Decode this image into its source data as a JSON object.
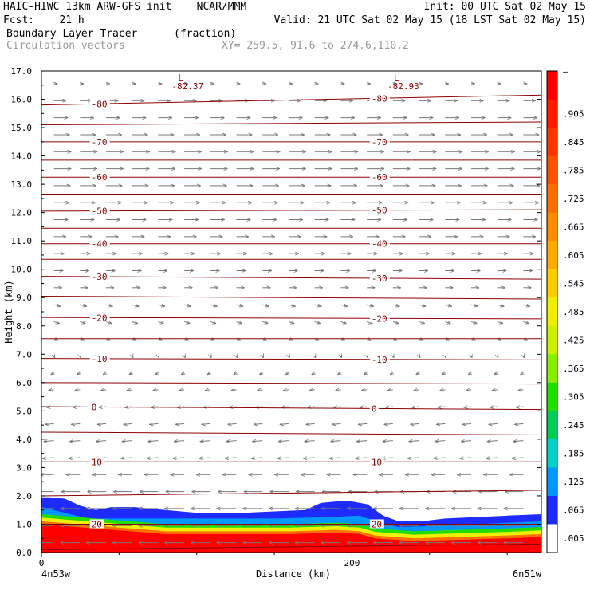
{
  "header": {
    "line1_left": "HAIC-HIWC 13km ARW-GFS init    NCAR/MMM",
    "line1_right": "Init: 00 UTC Sat 02 May 15",
    "line2_left": "Fcst:    21 h",
    "line2_right": "Valid: 21 UTC Sat 02 May 15 (18 LST Sat 02 May 15)",
    "line3_field": "Boundary Layer Tracer",
    "line3_units": "(fraction)",
    "line4_field": "Circulation vectors",
    "line4_xy": "XY= 259.5, 91.6 to 274.6,110.2"
  },
  "axes": {
    "ylabel": "Height (km)",
    "xlabel": "Distance (km)",
    "x_left_label": "4n53w",
    "x_right_label": "6n51w"
  },
  "low_markers": [
    {
      "symbol": "L",
      "value": "-82.37",
      "x_km": 88
    },
    {
      "symbol": "L",
      "value": "-82.93",
      "x_km": 227
    }
  ],
  "colorbar": {
    "top_label": "–",
    "labels": [
      ".905",
      ".845",
      ".785",
      ".725",
      ".665",
      ".605",
      ".545",
      ".485",
      ".425",
      ".365",
      ".305",
      ".245",
      ".185",
      ".125",
      ".065",
      ".005"
    ],
    "colors": [
      "#ff0000",
      "#ff1a00",
      "#ff3500",
      "#ff5200",
      "#ff6e00",
      "#ff8c00",
      "#ffaa00",
      "#ffcc00",
      "#eeee00",
      "#c8f000",
      "#88ee00",
      "#22dd00",
      "#00cc55",
      "#00d2c8",
      "#0096ff",
      "#1e2bff",
      "#ffffff"
    ]
  },
  "chart_data": {
    "type": "heatmap",
    "description_fields": "Vertical cross-section: boundary layer tracer (shaded, fraction), temperature contours (°C), circulation vectors",
    "x": {
      "label": "Distance (km)",
      "range": [
        0,
        322
      ],
      "ticks": [
        0,
        200
      ]
    },
    "y": {
      "label": "Height (km)",
      "range": [
        0,
        17
      ],
      "ticks": [
        0.0,
        1.0,
        2.0,
        3.0,
        4.0,
        5.0,
        6.0,
        7.0,
        8.0,
        9.0,
        10.0,
        11.0,
        12.0,
        13.0,
        14.0,
        15.0,
        16.0,
        17.0
      ]
    },
    "tick_labels_y": [
      "0.0",
      "1.0",
      "2.0",
      "3.0",
      "4.0",
      "5.0",
      "6.0",
      "7.0",
      "8.0",
      "9.0",
      "10.0",
      "11.0",
      "12.0",
      "13.0",
      "14.0",
      "15.0",
      "16.0",
      "17.0"
    ],
    "tick_labels_x": [
      "0",
      "200"
    ],
    "tracer_top_km": [
      [
        0,
        1.95
      ],
      [
        5,
        1.95
      ],
      [
        15,
        1.9
      ],
      [
        25,
        1.65
      ],
      [
        35,
        1.5
      ],
      [
        45,
        1.6
      ],
      [
        60,
        1.6
      ],
      [
        80,
        1.5
      ],
      [
        100,
        1.4
      ],
      [
        130,
        1.4
      ],
      [
        150,
        1.45
      ],
      [
        170,
        1.5
      ],
      [
        180,
        1.75
      ],
      [
        190,
        1.8
      ],
      [
        200,
        1.8
      ],
      [
        210,
        1.7
      ],
      [
        215,
        1.5
      ],
      [
        220,
        1.3
      ],
      [
        230,
        1.1
      ],
      [
        245,
        1.1
      ],
      [
        260,
        1.2
      ],
      [
        280,
        1.25
      ],
      [
        300,
        1.3
      ],
      [
        322,
        1.35
      ]
    ],
    "blue_layer_bottom_km": [
      [
        0,
        1.6
      ],
      [
        30,
        1.2
      ],
      [
        80,
        1.2
      ],
      [
        150,
        1.2
      ],
      [
        185,
        1.25
      ],
      [
        205,
        1.3
      ],
      [
        215,
        1.1
      ],
      [
        230,
        0.9
      ],
      [
        260,
        0.95
      ],
      [
        300,
        1.05
      ],
      [
        322,
        1.1
      ]
    ],
    "green_layer_bottom_km": [
      [
        0,
        1.35
      ],
      [
        80,
        1.0
      ],
      [
        160,
        1.0
      ],
      [
        190,
        1.05
      ],
      [
        205,
        1.0
      ],
      [
        215,
        0.85
      ],
      [
        240,
        0.75
      ],
      [
        300,
        0.85
      ],
      [
        322,
        0.9
      ]
    ],
    "temperature_contours": [
      {
        "label": "-80",
        "y0_km": 15.8,
        "y1_km": 16.15
      },
      {
        "label": "",
        "y0_km": 15.1,
        "y1_km": 15.2
      },
      {
        "label": "-70",
        "y0_km": 14.5,
        "y1_km": 14.5
      },
      {
        "label": "",
        "y0_km": 13.85,
        "y1_km": 13.85
      },
      {
        "label": "-60",
        "y0_km": 13.25,
        "y1_km": 13.25
      },
      {
        "label": "",
        "y0_km": 12.65,
        "y1_km": 12.65
      },
      {
        "label": "-50",
        "y0_km": 12.05,
        "y1_km": 12.1
      },
      {
        "label": "",
        "y0_km": 11.45,
        "y1_km": 11.45
      },
      {
        "label": "-40",
        "y0_km": 10.9,
        "y1_km": 10.9
      },
      {
        "label": "",
        "y0_km": 10.35,
        "y1_km": 10.35
      },
      {
        "label": "-30",
        "y0_km": 9.75,
        "y1_km": 9.65
      },
      {
        "label": "",
        "y0_km": 9.05,
        "y1_km": 8.95
      },
      {
        "label": "-20",
        "y0_km": 8.3,
        "y1_km": 8.25
      },
      {
        "label": "",
        "y0_km": 7.55,
        "y1_km": 7.55
      },
      {
        "label": "-10",
        "y0_km": 6.85,
        "y1_km": 6.8
      },
      {
        "label": "",
        "y0_km": 6.0,
        "y1_km": 5.95
      },
      {
        "label": "0",
        "y0_km": 5.15,
        "y1_km": 5.05
      },
      {
        "label": "",
        "y0_km": 4.25,
        "y1_km": 4.15
      },
      {
        "label": "10",
        "y0_km": 3.2,
        "y1_km": 3.2
      },
      {
        "label": "",
        "y0_km": 2.0,
        "y1_km": 2.2
      },
      {
        "label": "20",
        "y0_km": 1.0,
        "y1_km": 1.0
      },
      {
        "label": "",
        "y0_km": 0.1,
        "y1_km": 0.3
      }
    ],
    "wind_u_profile": [
      [
        0.2,
        -1.0
      ],
      [
        2.0,
        -1.0
      ],
      [
        3.0,
        -0.6
      ],
      [
        4.0,
        -0.5
      ],
      [
        5.5,
        -0.3
      ],
      [
        6.5,
        -0.1
      ],
      [
        7.5,
        0.2
      ],
      [
        9.0,
        0.35
      ],
      [
        10.5,
        0.5
      ],
      [
        12.0,
        0.75
      ],
      [
        14.0,
        0.9
      ],
      [
        16.0,
        0.6
      ],
      [
        17.0,
        -0.2
      ]
    ]
  }
}
